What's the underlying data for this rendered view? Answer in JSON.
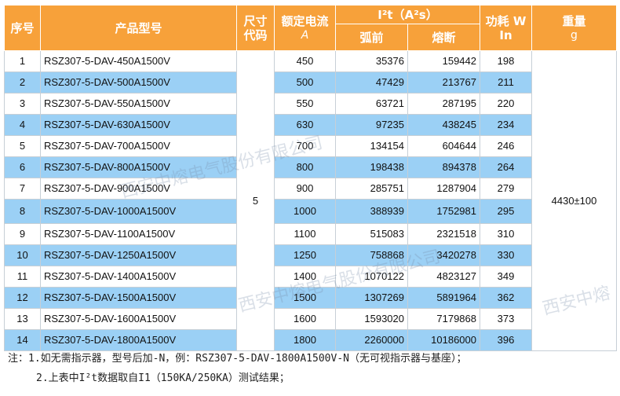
{
  "headers": {
    "seq": "序号",
    "model": "产品型号",
    "size_code_l1": "尺寸",
    "size_code_l2": "代码",
    "rated_current": "额定电流",
    "rated_current_unit": "A",
    "i2t": "I²t（A²s）",
    "arcing": "弧前",
    "melting": "熔断",
    "power_loss": "功耗 W",
    "power_loss_sub": "In",
    "weight": "重量",
    "weight_unit": "g"
  },
  "size_code": "5",
  "weight": "4430±100",
  "rows": [
    {
      "no": "1",
      "model": "RSZ307-5-DAV-450A1500V",
      "current": "450",
      "arcing": "35376",
      "melting": "159442",
      "power": "198"
    },
    {
      "no": "2",
      "model": "RSZ307-5-DAV-500A1500V",
      "current": "500",
      "arcing": "47429",
      "melting": "213767",
      "power": "211"
    },
    {
      "no": "3",
      "model": "RSZ307-5-DAV-550A1500V",
      "current": "550",
      "arcing": "63721",
      "melting": "287195",
      "power": "220"
    },
    {
      "no": "4",
      "model": "RSZ307-5-DAV-630A1500V",
      "current": "630",
      "arcing": "97235",
      "melting": "438245",
      "power": "234"
    },
    {
      "no": "5",
      "model": "RSZ307-5-DAV-700A1500V",
      "current": "700",
      "arcing": "134154",
      "melting": "604644",
      "power": "246"
    },
    {
      "no": "6",
      "model": "RSZ307-5-DAV-800A1500V",
      "current": "800",
      "arcing": "198438",
      "melting": "894378",
      "power": "264"
    },
    {
      "no": "7",
      "model": "RSZ307-5-DAV-900A1500V",
      "current": "900",
      "arcing": "285751",
      "melting": "1287904",
      "power": "279"
    },
    {
      "no": "8",
      "model": "RSZ307-5-DAV-1000A1500V",
      "current": "1000",
      "arcing": "388939",
      "melting": "1752981",
      "power": "295"
    },
    {
      "no": "9",
      "model": "RSZ307-5-DAV-1100A1500V",
      "current": "1100",
      "arcing": "515083",
      "melting": "2321518",
      "power": "310"
    },
    {
      "no": "10",
      "model": "RSZ307-5-DAV-1250A1500V",
      "current": "1250",
      "arcing": "758868",
      "melting": "3420278",
      "power": "330"
    },
    {
      "no": "11",
      "model": "RSZ307-5-DAV-1400A1500V",
      "current": "1400",
      "arcing": "1070122",
      "melting": "4823127",
      "power": "349"
    },
    {
      "no": "12",
      "model": "RSZ307-5-DAV-1500A1500V",
      "current": "1500",
      "arcing": "1307269",
      "melting": "5891964",
      "power": "362"
    },
    {
      "no": "13",
      "model": "RSZ307-5-DAV-1600A1500V",
      "current": "1600",
      "arcing": "1593020",
      "melting": "7179868",
      "power": "373"
    },
    {
      "no": "14",
      "model": "RSZ307-5-DAV-1800A1500V",
      "current": "1800",
      "arcing": "2260000",
      "melting": "10186000",
      "power": "396"
    }
  ],
  "notes": {
    "line1": "注：1.如无需指示器，型号后加-N，例：RSZ307-5-DAV-1800A1500V-N（无可视指示器与基座）；",
    "line2": "2.上表中I²t数据取自I1（150KA/250KA）测试结果；"
  },
  "watermarks": {
    "wm1": "西安中熔电气股份有限公司",
    "wm2": "西安中熔电气股份有限公司",
    "wm3": "西安中熔"
  },
  "colors": {
    "header_bg": "#f7a13a",
    "stripe_blue": "#9bd0f5"
  }
}
